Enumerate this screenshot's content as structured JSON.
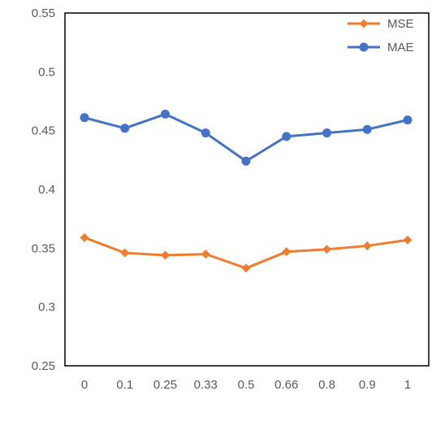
{
  "chart_data": {
    "type": "line",
    "categories": [
      "0",
      "0.1",
      "0.25",
      "0.33",
      "0.5",
      "0.66",
      "0.8",
      "0.9",
      "1"
    ],
    "series": [
      {
        "name": "MSE",
        "color": "#ED7D31",
        "marker": "diamond",
        "values": [
          0.359,
          0.346,
          0.344,
          0.345,
          0.333,
          0.347,
          0.349,
          0.352,
          0.357
        ]
      },
      {
        "name": "MAE",
        "color": "#4472C4",
        "marker": "circle",
        "values": [
          0.461,
          0.452,
          0.464,
          0.448,
          0.424,
          0.445,
          0.448,
          0.451,
          0.459
        ]
      }
    ],
    "yticks": [
      "0.25",
      "0.3",
      "0.35",
      "0.4",
      "0.45",
      "0.5",
      "0.55"
    ],
    "ylim": [
      0.25,
      0.55
    ],
    "grid": false,
    "legend": "top-right"
  }
}
